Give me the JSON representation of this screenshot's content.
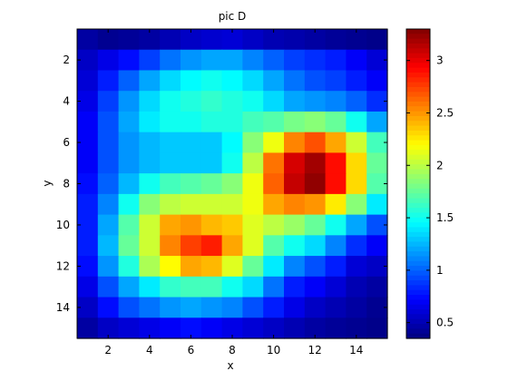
{
  "chart_data": {
    "type": "heatmap",
    "title": "pic D",
    "xlabel": "x",
    "ylabel": "y",
    "colormap": "jet",
    "clim": [
      0.35,
      3.3
    ],
    "xlim": [
      0.5,
      15.5
    ],
    "ylim": [
      0.5,
      15.5
    ],
    "x_ticks": [
      "2",
      "4",
      "6",
      "8",
      "10",
      "12",
      "14"
    ],
    "y_ticks": [
      "2",
      "4",
      "6",
      "8",
      "10",
      "12",
      "14"
    ],
    "colorbar_ticks": [
      "0.5",
      "1",
      "1.5",
      "2",
      "2.5",
      "3"
    ],
    "values": [
      [
        0.45,
        0.4,
        0.42,
        0.45,
        0.5,
        0.55,
        0.58,
        0.6,
        0.55,
        0.5,
        0.48,
        0.45,
        0.42,
        0.4,
        0.38
      ],
      [
        0.55,
        0.65,
        0.75,
        0.9,
        1.05,
        1.15,
        1.2,
        1.2,
        1.1,
        1.0,
        0.9,
        0.85,
        0.8,
        0.7,
        0.6
      ],
      [
        0.6,
        0.8,
        1.0,
        1.2,
        1.35,
        1.45,
        1.5,
        1.45,
        1.35,
        1.2,
        1.05,
        0.95,
        0.9,
        0.8,
        0.7
      ],
      [
        0.65,
        0.9,
        1.15,
        1.35,
        1.5,
        1.55,
        1.6,
        1.55,
        1.5,
        1.35,
        1.2,
        1.15,
        1.1,
        1.0,
        0.85
      ],
      [
        0.7,
        0.95,
        1.2,
        1.4,
        1.5,
        1.5,
        1.55,
        1.55,
        1.65,
        1.7,
        1.8,
        1.85,
        1.75,
        1.5,
        1.2
      ],
      [
        0.7,
        0.95,
        1.15,
        1.25,
        1.3,
        1.3,
        1.3,
        1.45,
        1.85,
        2.15,
        2.55,
        2.7,
        2.45,
        2.05,
        1.65
      ],
      [
        0.7,
        0.95,
        1.15,
        1.25,
        1.3,
        1.3,
        1.3,
        1.5,
        2.0,
        2.6,
        3.05,
        3.2,
        2.9,
        2.3,
        1.75
      ],
      [
        0.75,
        1.0,
        1.25,
        1.5,
        1.65,
        1.7,
        1.75,
        1.85,
        2.15,
        2.65,
        3.1,
        3.25,
        2.9,
        2.3,
        1.7
      ],
      [
        0.8,
        1.1,
        1.5,
        1.85,
        2.0,
        2.05,
        2.05,
        2.05,
        2.15,
        2.45,
        2.55,
        2.5,
        2.25,
        1.85,
        1.4
      ],
      [
        0.8,
        1.2,
        1.7,
        2.05,
        2.45,
        2.5,
        2.4,
        2.35,
        2.1,
        2.0,
        1.9,
        1.75,
        1.5,
        1.2,
        0.95
      ],
      [
        0.8,
        1.25,
        1.75,
        2.05,
        2.55,
        2.75,
        2.85,
        2.45,
        2.1,
        1.7,
        1.5,
        1.35,
        1.1,
        0.85,
        0.7
      ],
      [
        0.75,
        1.15,
        1.55,
        1.95,
        2.2,
        2.45,
        2.4,
        2.1,
        1.75,
        1.4,
        1.1,
        0.95,
        0.8,
        0.6,
        0.55
      ],
      [
        0.65,
        0.95,
        1.2,
        1.4,
        1.6,
        1.65,
        1.65,
        1.5,
        1.35,
        1.05,
        0.8,
        0.7,
        0.6,
        0.5,
        0.45
      ],
      [
        0.55,
        0.75,
        0.95,
        1.05,
        1.15,
        1.2,
        1.15,
        1.1,
        0.95,
        0.8,
        0.65,
        0.55,
        0.5,
        0.45,
        0.4
      ],
      [
        0.45,
        0.55,
        0.6,
        0.65,
        0.7,
        0.75,
        0.7,
        0.65,
        0.6,
        0.55,
        0.5,
        0.45,
        0.42,
        0.4,
        0.38
      ]
    ]
  }
}
